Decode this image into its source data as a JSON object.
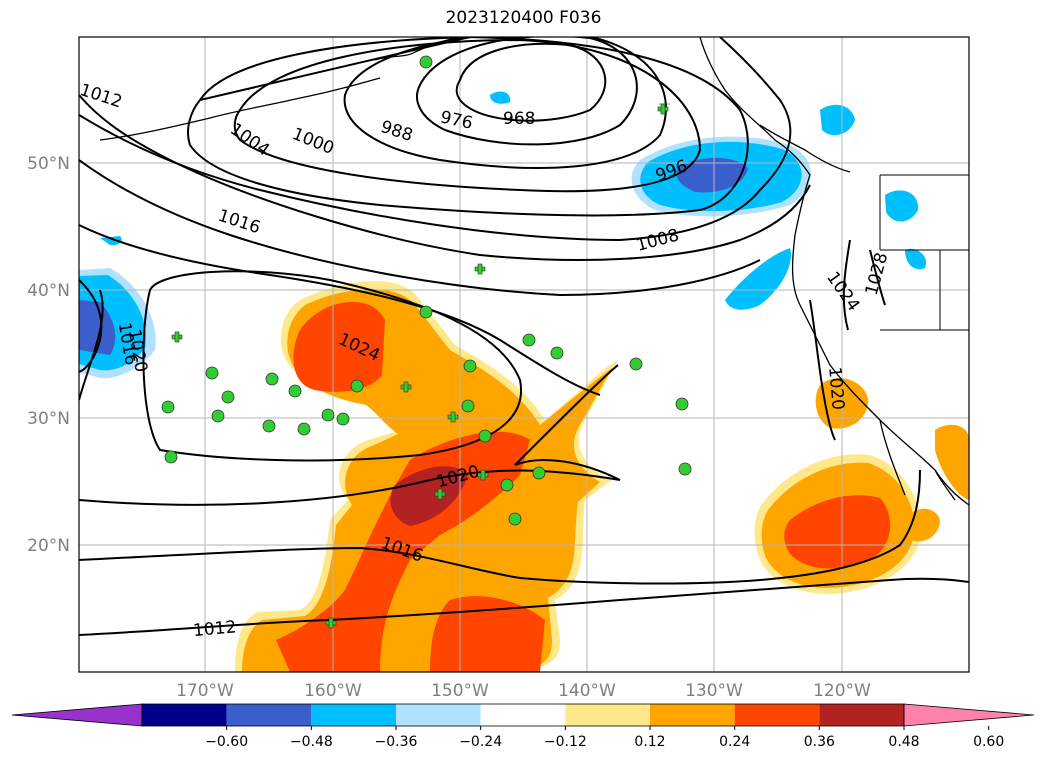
{
  "title": "2023120400 F036",
  "lat_labels": [
    "50°N",
    "40°N",
    "30°N",
    "20°N"
  ],
  "lon_labels": [
    "170°W",
    "160°W",
    "150°W",
    "140°W",
    "130°W",
    "120°W"
  ],
  "contour_labels": [
    "1012",
    "1004",
    "1000",
    "988",
    "976",
    "968",
    "996",
    "1016",
    "1008",
    "1020",
    "1016",
    "1024",
    "1020",
    "1016",
    "1012",
    "1024",
    "1028",
    "1020"
  ],
  "colorbar": {
    "ticks": [
      "−0.60",
      "−0.48",
      "−0.36",
      "−0.24",
      "−0.12",
      "0.12",
      "0.24",
      "0.36",
      "0.48",
      "0.60"
    ],
    "colors": [
      "#9932cc",
      "#00008b",
      "#3a5fcd",
      "#00bfff",
      "#b0e2ff",
      "#ffffff",
      "#ffe88a",
      "#ffa500",
      "#ff4500",
      "#b22222",
      "#ff82ab"
    ]
  },
  "colors": {
    "grid": "#b5b5b5",
    "axis_label": "#808080",
    "contour": "#000000",
    "station": "#32cd32"
  }
}
